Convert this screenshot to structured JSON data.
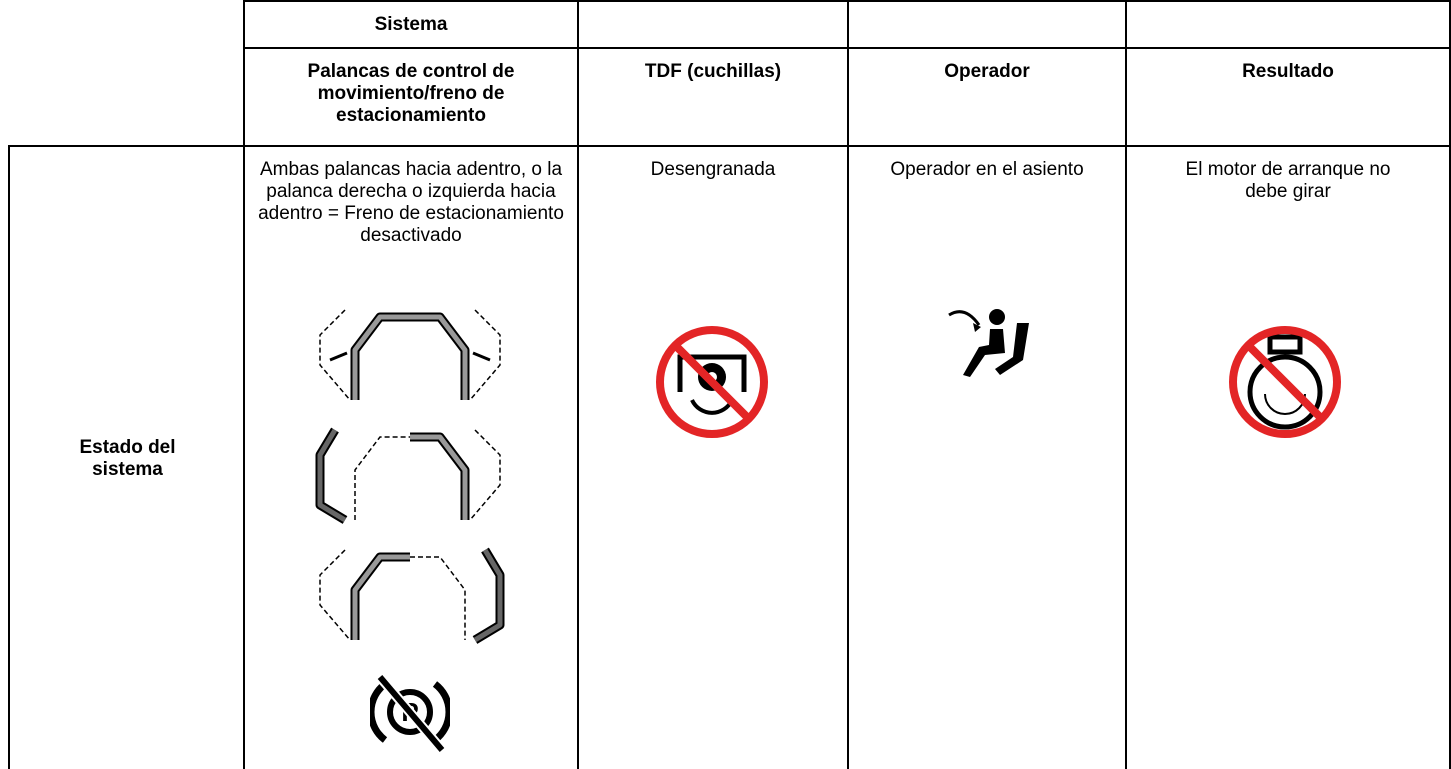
{
  "table": {
    "system_label": "Sistema",
    "columns": [
      "Palancas de control de movimiento/freno de estacionamiento",
      "TDF (cuchillas)",
      "Operador",
      "Resultado"
    ],
    "rows": [
      {
        "label": "Estado del sistema",
        "cells": [
          "Ambas palancas hacia adentro, o la palanca derecha o izquierda hacia adentro = Freno de estacionamiento desactivado",
          "Desengranada",
          "Operador en el asiento",
          "El motor de arranque no debe girar"
        ]
      }
    ]
  }
}
